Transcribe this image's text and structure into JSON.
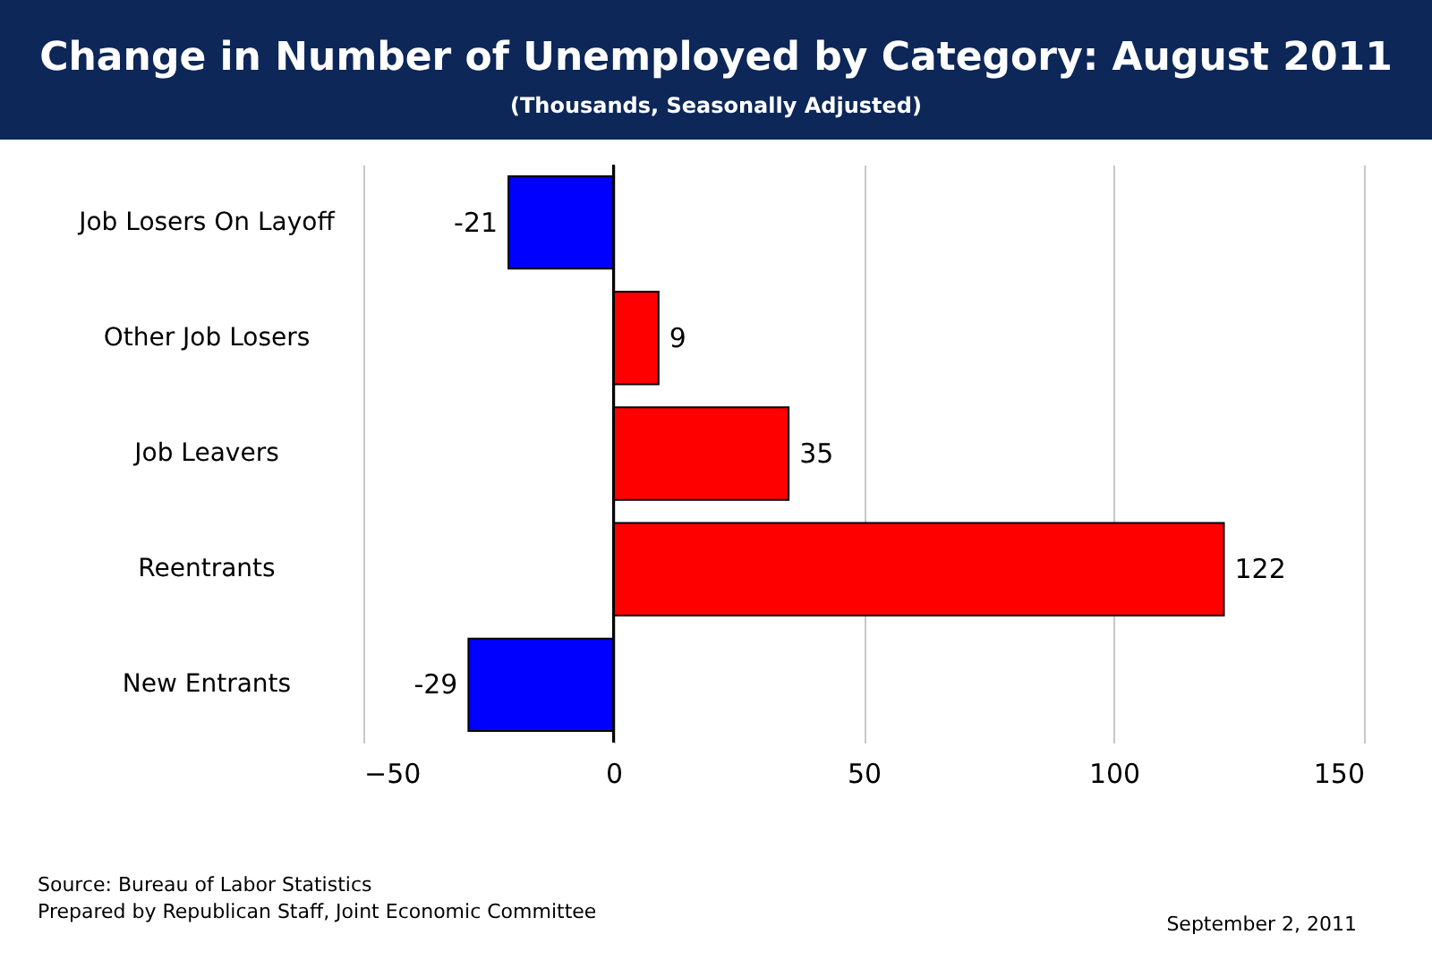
{
  "chart_data": {
    "type": "bar",
    "orientation": "horizontal",
    "title": "Change in Number of Unemployed by Category:  August 2011",
    "subtitle": "(Thousands, Seasonally Adjusted)",
    "categories": [
      "Job Losers On Layoff",
      "Other Job Losers",
      "Job Leavers",
      "Reentrants",
      "New Entrants"
    ],
    "values": [
      -21,
      9,
      35,
      122,
      -29
    ],
    "colors": [
      "#0000ff",
      "#ff0000",
      "#ff0000",
      "#ff0000",
      "#0000ff"
    ],
    "xlim": [
      -50,
      150
    ],
    "xticks": [
      -50,
      0,
      50,
      100,
      150
    ],
    "grid": "x",
    "data_labels": true,
    "ref_lines": [
      {
        "axis": "x",
        "value": 0,
        "color": "#000000"
      }
    ],
    "annotations": [
      "Source:  Bureau of Labor Statistics",
      "Prepared by Republican Staff, Joint Economic Committee",
      "September 2, 2011"
    ]
  }
}
